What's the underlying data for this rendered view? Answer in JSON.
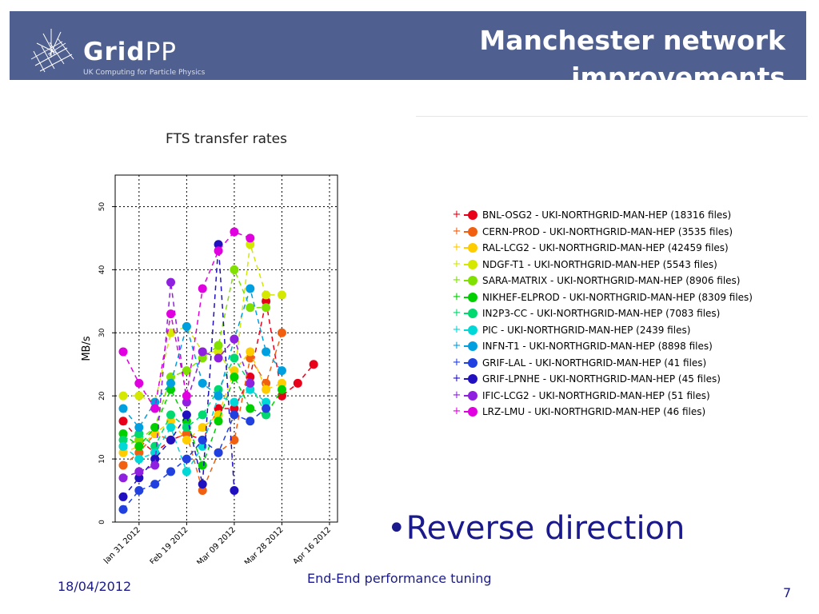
{
  "header": {
    "brand_bold": "Grid",
    "brand_light": "PP",
    "brand_sub": "UK Computing for Particle Physics",
    "title_line1": "Manchester network",
    "title_line2": "improvements",
    "bg_color": "#4f5f8f"
  },
  "bullet_text": "•Reverse direction",
  "footer": {
    "date": "18/04/2012",
    "center": "End-End performance tuning",
    "page": "7"
  },
  "chart_data": {
    "type": "line",
    "title": "FTS transfer rates",
    "ylabel": "MB/s",
    "xlabel": "",
    "ylim": [
      0,
      55
    ],
    "yticks": [
      0,
      10,
      20,
      30,
      40,
      50
    ],
    "xticks": [
      "Jan 31 2012",
      "Feb 19 2012",
      "Mar 09 2012",
      "Mar 28 2012",
      "Apr 16 2012"
    ],
    "xtick_idx": [
      1,
      4,
      7,
      10,
      13
    ],
    "n_points": 14,
    "grid": true,
    "legend": "right",
    "series": [
      {
        "name": "BNL-OSG2 - UKI-NORTHGRID-MAN-HEP  (18316 files)",
        "color": "#e8001a",
        "values": [
          16,
          13,
          11,
          13,
          14,
          13,
          18,
          18,
          23,
          35,
          20,
          22,
          25,
          null
        ]
      },
      {
        "name": "CERN-PROD - UKI-NORTHGRID-MAN-HEP  (3535 files)",
        "color": "#f06010",
        "values": [
          9,
          11,
          14,
          13,
          14,
          5,
          11,
          13,
          26,
          22,
          30,
          null,
          null,
          null
        ]
      },
      {
        "name": "RAL-LCG2 - UKI-NORTHGRID-MAN-HEP  (42459 files)",
        "color": "#ffcc00",
        "values": [
          11,
          12,
          14,
          16,
          13,
          15,
          17,
          24,
          27,
          21,
          22,
          null,
          null,
          null
        ]
      },
      {
        "name": "NDGF-T1 - UKI-NORTHGRID-MAN-HEP  (5543 files)",
        "color": "#d4e800",
        "values": [
          20,
          20,
          19,
          30,
          31,
          27,
          27,
          23,
          44,
          36,
          36,
          null,
          null,
          null
        ]
      },
      {
        "name": "SARA-MATRIX - UKI-NORTHGRID-MAN-HEP  (8906 files)",
        "color": "#80e000",
        "values": [
          12,
          13,
          15,
          23,
          24,
          26,
          28,
          40,
          34,
          34,
          null,
          null,
          null,
          null
        ]
      },
      {
        "name": "NIKHEF-ELPROD - UKI-NORTHGRID-MAN-HEP  (8309 files)",
        "color": "#00d000",
        "values": [
          14,
          12,
          15,
          21,
          16,
          9,
          16,
          23,
          18,
          17,
          21,
          null,
          null,
          null
        ]
      },
      {
        "name": "IN2P3-CC - UKI-NORTHGRID-MAN-HEP  (7083 files)",
        "color": "#00d870",
        "values": [
          13,
          14,
          12,
          17,
          15,
          17,
          21,
          26,
          22,
          17,
          null,
          null,
          null,
          null
        ]
      },
      {
        "name": "PIC - UKI-NORTHGRID-MAN-HEP  (2439 files)",
        "color": "#00d8d8",
        "values": [
          12,
          10,
          11,
          15,
          8,
          12,
          20,
          19,
          21,
          19,
          null,
          null,
          null,
          null
        ]
      },
      {
        "name": "INFN-T1 - UKI-NORTHGRID-MAN-HEP  (8898 files)",
        "color": "#00a0e0",
        "values": [
          18,
          15,
          19,
          22,
          31,
          22,
          20,
          29,
          37,
          27,
          24,
          null,
          null,
          null
        ]
      },
      {
        "name": "GRIF-LAL - UKI-NORTHGRID-MAN-HEP  (41 files)",
        "color": "#2040e0",
        "values": [
          2,
          5,
          6,
          8,
          10,
          13,
          11,
          17,
          16,
          18,
          null,
          null,
          null,
          null
        ]
      },
      {
        "name": "GRIF-LPNHE - UKI-NORTHGRID-MAN-HEP  (45 files)",
        "color": "#2010c0",
        "values": [
          4,
          7,
          10,
          13,
          17,
          6,
          44,
          5,
          null,
          null,
          null,
          null,
          null,
          null
        ]
      },
      {
        "name": "IFIC-LCG2 - UKI-NORTHGRID-MAN-HEP  (51 files)",
        "color": "#9020e0",
        "values": [
          7,
          8,
          9,
          38,
          19,
          27,
          26,
          29,
          22,
          null,
          null,
          null,
          null,
          null
        ]
      },
      {
        "name": "LRZ-LMU - UKI-NORTHGRID-MAN-HEP  (46 files)",
        "color": "#e000e0",
        "values": [
          27,
          22,
          18,
          33,
          20,
          37,
          43,
          46,
          45,
          null,
          null,
          null,
          null,
          null
        ]
      }
    ]
  }
}
